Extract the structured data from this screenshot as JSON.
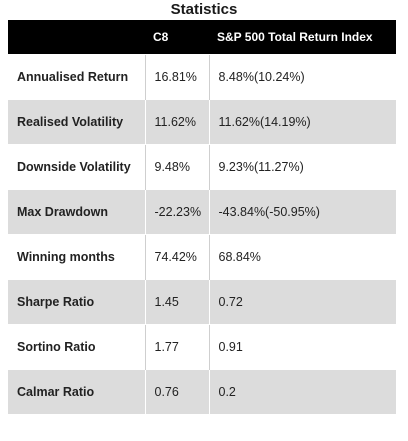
{
  "title": "Statistics",
  "table": {
    "headers": [
      "",
      "C8",
      "S&P 500 Total Return Index"
    ],
    "rows": [
      {
        "metric": "Annualised Return",
        "c8": "16.81%",
        "sp500": "8.48%(10.24%)"
      },
      {
        "metric": "Realised Volatility",
        "c8": "11.62%",
        "sp500": "11.62%(14.19%)"
      },
      {
        "metric": "Downside Volatility",
        "c8": "9.48%",
        "sp500": "9.23%(11.27%)"
      },
      {
        "metric": "Max Drawdown",
        "c8": "-22.23%",
        "sp500": "-43.84%(-50.95%)"
      },
      {
        "metric": "Winning months",
        "c8": "74.42%",
        "sp500": "68.84%"
      },
      {
        "metric": "Sharpe Ratio",
        "c8": "1.45",
        "sp500": "0.72"
      },
      {
        "metric": "Sortino Ratio",
        "c8": "1.77",
        "sp500": "0.91"
      },
      {
        "metric": "Calmar Ratio",
        "c8": "0.76",
        "sp500": "0.2"
      }
    ]
  },
  "colors": {
    "header_bg": "#000000",
    "header_text": "#ffffff",
    "row_alt_bg": "#dcdcdc"
  }
}
